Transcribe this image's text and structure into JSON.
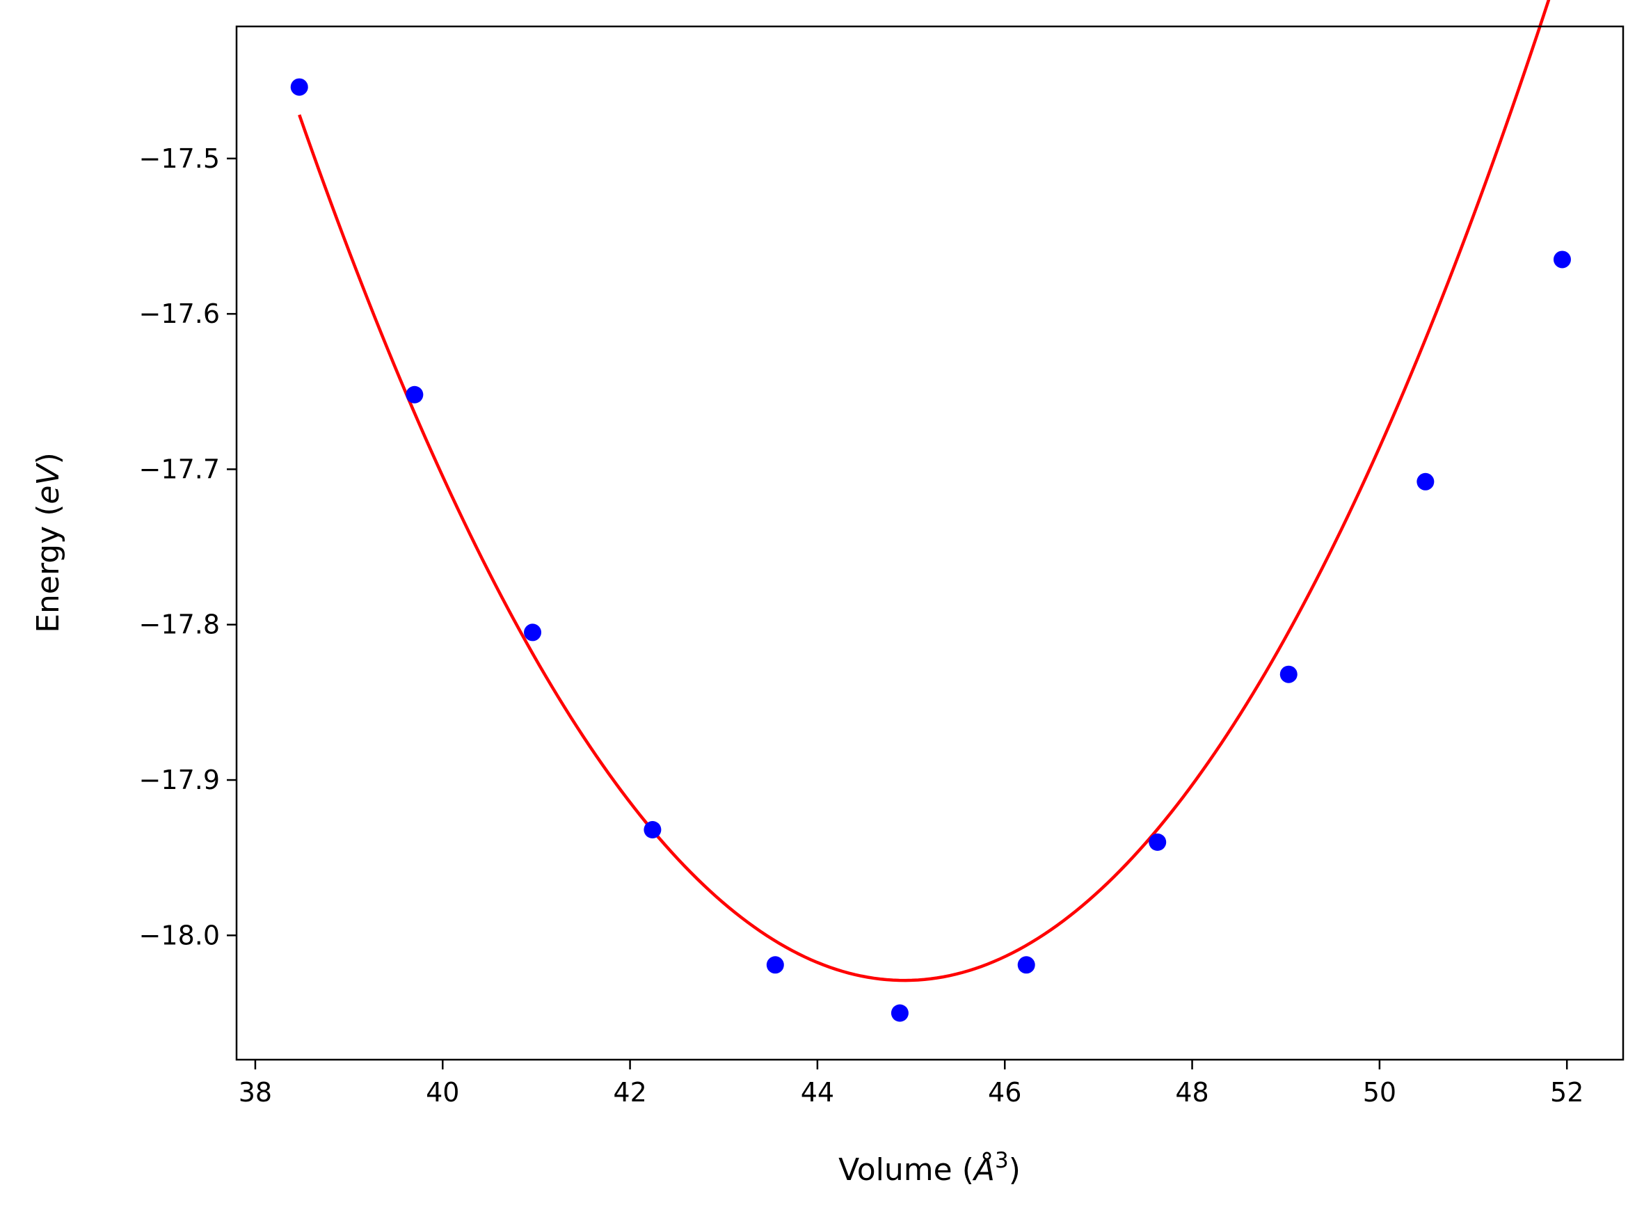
{
  "chart_data": {
    "type": "scatter",
    "title": "",
    "xlabel": {
      "text": "Volume (",
      "unit": "Å",
      "power": "3",
      "close": ")"
    },
    "ylabel": {
      "text": "Energy (",
      "unit": "eV",
      "close": ")"
    },
    "xlim": [
      37.8,
      52.6
    ],
    "ylim": [
      -18.08,
      -17.415
    ],
    "xticks": [
      38,
      40,
      42,
      44,
      46,
      48,
      50,
      52
    ],
    "xtick_labels": [
      "38",
      "40",
      "42",
      "44",
      "46",
      "48",
      "50",
      "52"
    ],
    "yticks": [
      -17.5,
      -17.6,
      -17.7,
      -17.8,
      -17.9,
      -18.0
    ],
    "ytick_labels": [
      "−17.5",
      "−17.6",
      "−17.7",
      "−17.8",
      "−17.9",
      "−18.0"
    ],
    "grid": false,
    "legend": "none",
    "series": [
      {
        "kind": "points",
        "color": "#0000ff",
        "x": [
          38.47,
          39.7,
          40.96,
          42.24,
          43.55,
          44.88,
          46.23,
          47.63,
          49.03,
          50.49,
          51.95
        ],
        "y": [
          -17.454,
          -17.652,
          -17.805,
          -17.932,
          -18.019,
          -18.05,
          -18.019,
          -17.94,
          -17.832,
          -17.708,
          -17.565
        ]
      },
      {
        "kind": "fit-curve",
        "color": "#ff0000",
        "fit": {
          "type": "quadratic",
          "vertex_x": 44.93,
          "vertex_y": -18.029,
          "curvature": 0.01335
        },
        "x_range": [
          38.47,
          51.95
        ]
      }
    ]
  }
}
